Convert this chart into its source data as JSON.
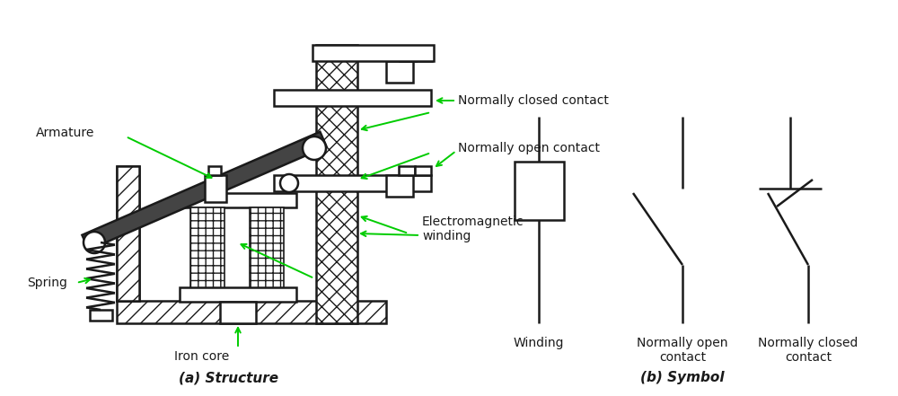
{
  "bg_color": "#ffffff",
  "line_color": "#1a1a1a",
  "arrow_color": "#00cc00",
  "text_color": "#1a1a1a",
  "fig_width": 10.0,
  "fig_height": 4.41,
  "labels": {
    "armature": "Armature",
    "spring": "Spring",
    "iron_core": "Iron core",
    "electromagnetic_winding": "Electromagnetic\nwinding",
    "normally_closed": "Normally closed contact",
    "normally_open": "Normally open contact",
    "structure_title": "(a) Structure",
    "symbol_title": "(b) Symbol",
    "winding_label": "Winding",
    "no_contact_label": "Normally open\ncontact",
    "nc_contact_label": "Normally closed\ncontact"
  }
}
